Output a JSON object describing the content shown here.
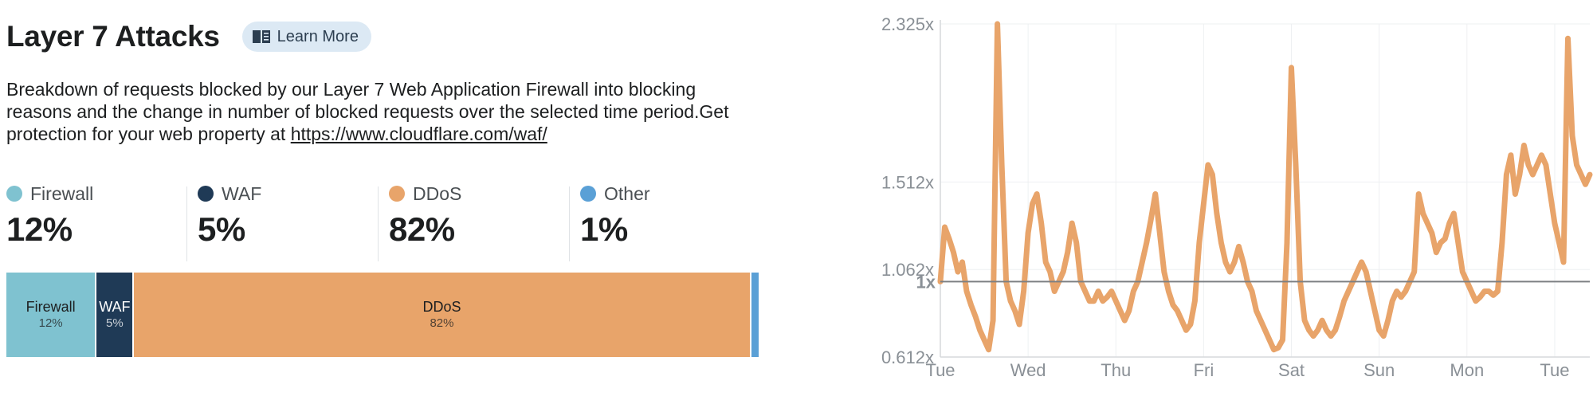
{
  "header": {
    "title": "Layer 7 Attacks",
    "learn_more_label": "Learn More",
    "learn_more_icon": "book-icon"
  },
  "description": {
    "text": "Breakdown of requests blocked by our Layer 7 Web Application Firewall into blocking reasons and the change in number of blocked requests over the selected time period.Get protection for your web property at ",
    "link_text": "https://www.cloudflare.com/waf/"
  },
  "stats": [
    {
      "name": "Firewall",
      "value": "12%",
      "color": "#7fc2d0"
    },
    {
      "name": "WAF",
      "value": "5%",
      "color": "#1f3a56"
    },
    {
      "name": "DDoS",
      "value": "82%",
      "color": "#e8a46a"
    },
    {
      "name": "Other",
      "value": "1%",
      "color": "#5aa0d6"
    }
  ],
  "breakdown_bar": [
    {
      "label": "Firewall",
      "pct_label": "12%",
      "share": 12,
      "color": "#7fc2d0",
      "text_color": "#1d1f20"
    },
    {
      "label": "WAF",
      "pct_label": "5%",
      "share": 5,
      "color": "#1f3a56",
      "text_color": "#ffffff"
    },
    {
      "label": "DDoS",
      "pct_label": "82%",
      "share": 82,
      "color": "#e8a46a",
      "text_color": "#1d1f20"
    },
    {
      "label": "",
      "pct_label": "",
      "share": 1,
      "color": "#5aa0d6",
      "text_color": "#1d1f20"
    }
  ],
  "chart_data": {
    "type": "line",
    "title": "",
    "xlabel": "",
    "ylabel": "",
    "y_ticks": [
      "2.325x",
      "1.512x",
      "1.062x",
      "0.612x"
    ],
    "y_tick_values": [
      2.325,
      1.512,
      1.062,
      0.612
    ],
    "baseline_label": "1x",
    "baseline_value": 1.0,
    "ylim": [
      0.612,
      2.325
    ],
    "x_ticks": [
      "Tue",
      "Wed",
      "Thu",
      "Fri",
      "Sat",
      "Sun",
      "Mon",
      "Tue"
    ],
    "xlim": [
      0,
      7.4
    ],
    "grid": true,
    "series": [
      {
        "color": "#e8a46a",
        "x": [
          0.0,
          0.05,
          0.1,
          0.15,
          0.2,
          0.25,
          0.3,
          0.35,
          0.4,
          0.45,
          0.5,
          0.55,
          0.6,
          0.65,
          0.7,
          0.75,
          0.8,
          0.85,
          0.9,
          0.95,
          1.0,
          1.05,
          1.1,
          1.15,
          1.2,
          1.25,
          1.3,
          1.35,
          1.4,
          1.45,
          1.5,
          1.55,
          1.6,
          1.65,
          1.7,
          1.75,
          1.8,
          1.85,
          1.9,
          1.95,
          2.0,
          2.05,
          2.1,
          2.15,
          2.2,
          2.25,
          2.3,
          2.35,
          2.4,
          2.45,
          2.5,
          2.55,
          2.6,
          2.65,
          2.7,
          2.75,
          2.8,
          2.85,
          2.9,
          2.95,
          3.0,
          3.05,
          3.1,
          3.15,
          3.2,
          3.25,
          3.3,
          3.35,
          3.4,
          3.45,
          3.5,
          3.55,
          3.6,
          3.65,
          3.7,
          3.75,
          3.8,
          3.85,
          3.9,
          3.95,
          4.0,
          4.05,
          4.1,
          4.15,
          4.2,
          4.25,
          4.3,
          4.35,
          4.4,
          4.45,
          4.5,
          4.55,
          4.6,
          4.65,
          4.7,
          4.75,
          4.8,
          4.85,
          4.9,
          4.95,
          5.0,
          5.05,
          5.1,
          5.15,
          5.2,
          5.25,
          5.3,
          5.35,
          5.4,
          5.45,
          5.5,
          5.55,
          5.6,
          5.65,
          5.7,
          5.75,
          5.8,
          5.85,
          5.9,
          5.95,
          6.0,
          6.05,
          6.1,
          6.15,
          6.2,
          6.25,
          6.3,
          6.35,
          6.4,
          6.45,
          6.5,
          6.55,
          6.6,
          6.65,
          6.7,
          6.75,
          6.8,
          6.85,
          6.9,
          6.95,
          7.0,
          7.05,
          7.1,
          7.15,
          7.2,
          7.25,
          7.3,
          7.35,
          7.4
        ],
        "y": [
          1.0,
          1.28,
          1.22,
          1.15,
          1.05,
          1.1,
          0.95,
          0.88,
          0.82,
          0.75,
          0.7,
          0.65,
          0.8,
          2.325,
          1.6,
          1.0,
          0.9,
          0.85,
          0.78,
          0.95,
          1.25,
          1.4,
          1.45,
          1.3,
          1.1,
          1.05,
          0.95,
          1.0,
          1.05,
          1.15,
          1.3,
          1.2,
          1.0,
          0.95,
          0.9,
          0.9,
          0.95,
          0.9,
          0.92,
          0.95,
          0.9,
          0.85,
          0.8,
          0.85,
          0.95,
          1.0,
          1.1,
          1.2,
          1.32,
          1.45,
          1.25,
          1.05,
          0.95,
          0.88,
          0.85,
          0.8,
          0.75,
          0.78,
          0.9,
          1.2,
          1.4,
          1.6,
          1.55,
          1.35,
          1.2,
          1.1,
          1.05,
          1.1,
          1.18,
          1.1,
          1.0,
          0.95,
          0.85,
          0.8,
          0.75,
          0.7,
          0.65,
          0.66,
          0.7,
          1.2,
          2.1,
          1.6,
          1.0,
          0.8,
          0.75,
          0.72,
          0.75,
          0.8,
          0.75,
          0.72,
          0.75,
          0.82,
          0.9,
          0.95,
          1.0,
          1.05,
          1.1,
          1.05,
          0.95,
          0.85,
          0.75,
          0.72,
          0.8,
          0.9,
          0.95,
          0.92,
          0.95,
          1.0,
          1.05,
          1.45,
          1.35,
          1.3,
          1.25,
          1.15,
          1.2,
          1.22,
          1.3,
          1.35,
          1.2,
          1.05,
          1.0,
          0.95,
          0.9,
          0.92,
          0.95,
          0.95,
          0.93,
          0.95,
          1.2,
          1.55,
          1.65,
          1.45,
          1.55,
          1.7,
          1.6,
          1.55,
          1.6,
          1.65,
          1.6,
          1.45,
          1.3,
          1.2,
          1.1,
          2.25,
          1.75,
          1.6,
          1.55,
          1.5,
          1.55
        ]
      }
    ]
  }
}
